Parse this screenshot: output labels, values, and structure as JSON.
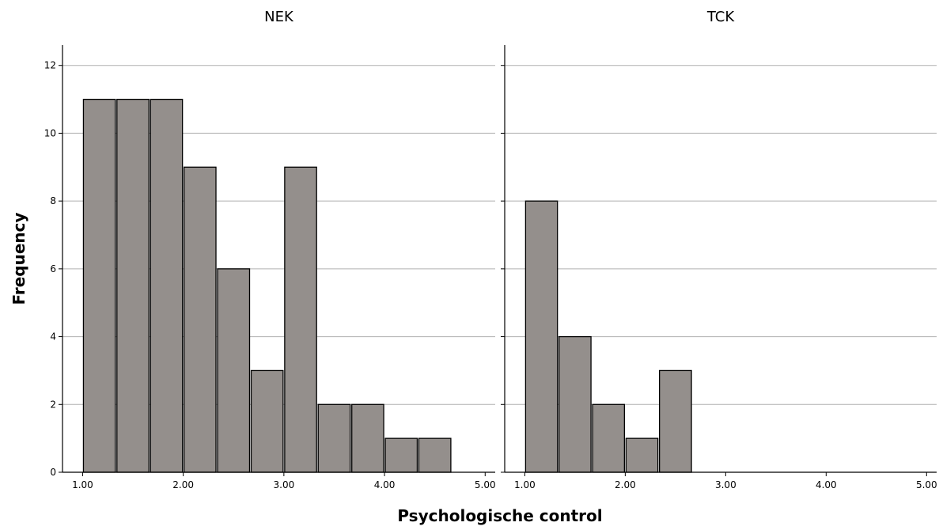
{
  "chart_data": {
    "type": "bar",
    "subtype": "histogram",
    "xlabel": "Psychologische control",
    "ylabel": "Frequency",
    "xlim": [
      0.8,
      5.1
    ],
    "ylim": [
      0,
      12.6
    ],
    "x_ticks": [
      {
        "value": 1,
        "label": "1.00"
      },
      {
        "value": 2,
        "label": "2.00"
      },
      {
        "value": 3,
        "label": "3.00"
      },
      {
        "value": 4,
        "label": "4.00"
      },
      {
        "value": 5,
        "label": "5.00"
      }
    ],
    "y_ticks": [
      0,
      2,
      4,
      6,
      8,
      10,
      12
    ],
    "grid": "horizontal",
    "bar_color": "#948f8c",
    "bar_edge_color": "#000000",
    "panels": [
      {
        "title": "NEK",
        "bins": [
          {
            "start": 1.0,
            "end": 1.333,
            "count": 11
          },
          {
            "start": 1.333,
            "end": 1.667,
            "count": 11
          },
          {
            "start": 1.667,
            "end": 2.0,
            "count": 11
          },
          {
            "start": 2.0,
            "end": 2.333,
            "count": 9
          },
          {
            "start": 2.333,
            "end": 2.667,
            "count": 6
          },
          {
            "start": 2.667,
            "end": 3.0,
            "count": 3
          },
          {
            "start": 3.0,
            "end": 3.333,
            "count": 9
          },
          {
            "start": 3.333,
            "end": 3.667,
            "count": 2
          },
          {
            "start": 3.667,
            "end": 4.0,
            "count": 2
          },
          {
            "start": 4.0,
            "end": 4.333,
            "count": 1
          },
          {
            "start": 4.333,
            "end": 4.667,
            "count": 1
          }
        ]
      },
      {
        "title": "TCK",
        "bins": [
          {
            "start": 1.0,
            "end": 1.333,
            "count": 8
          },
          {
            "start": 1.333,
            "end": 1.667,
            "count": 4
          },
          {
            "start": 1.667,
            "end": 2.0,
            "count": 2
          },
          {
            "start": 2.0,
            "end": 2.333,
            "count": 1
          },
          {
            "start": 2.333,
            "end": 2.667,
            "count": 3
          }
        ]
      }
    ]
  }
}
